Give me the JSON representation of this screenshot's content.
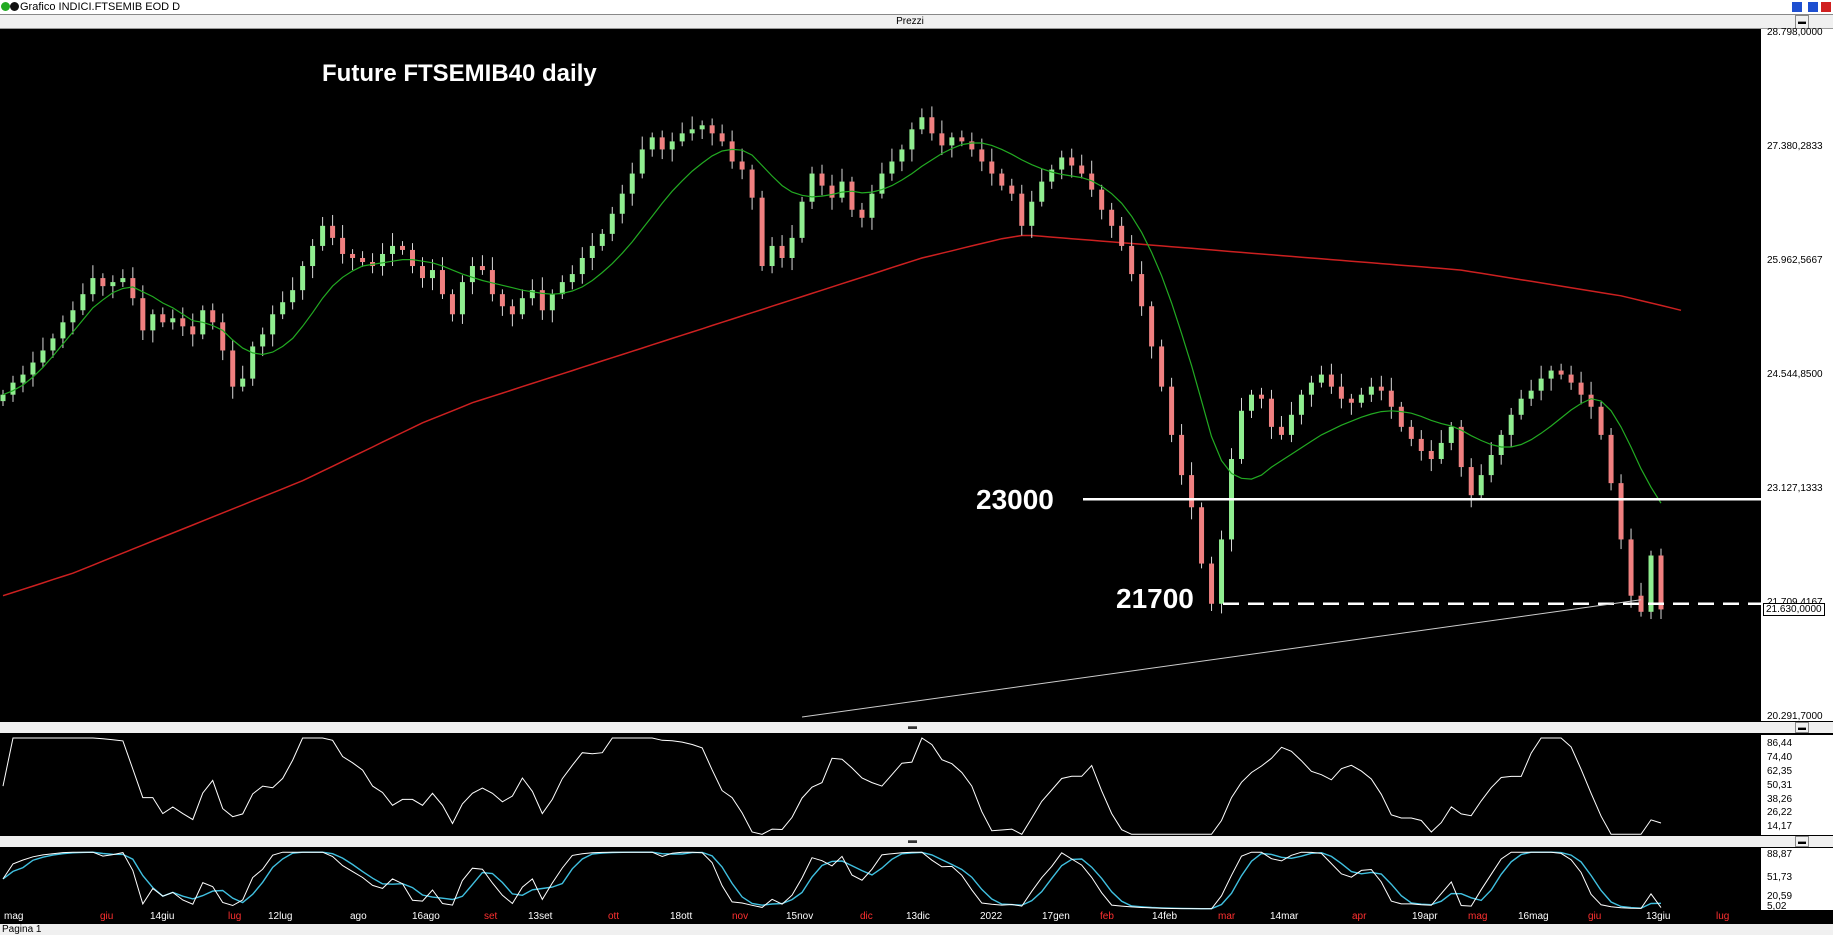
{
  "window": {
    "title": "Grafico INDICI.FTSEMIB EOD D"
  },
  "panels": {
    "price_title": "Prezzi"
  },
  "footer": {
    "tab": "Pagina 1"
  },
  "chart_data": [
    {
      "type": "candlestick",
      "title": "Future FTSEMIB40 daily",
      "y_ticks": [
        "28.798,0000",
        "27.380,2833",
        "25.962,5667",
        "24.544,8500",
        "23.127,1333",
        "21.709,4167",
        "20.291,7000"
      ],
      "y_tick_values": [
        28798,
        27380.28,
        25962.57,
        24544.85,
        23127.13,
        21709.42,
        20291.7
      ],
      "last_price_label": "21.630,0000",
      "last_price": 21630,
      "ylim": [
        20291.7,
        28798
      ],
      "x_ticks": [
        "mag",
        "giu",
        "14giu",
        "lug",
        "12lug",
        "ago",
        "16ago",
        "set",
        "13set",
        "ott",
        "18ott",
        "nov",
        "15nov",
        "dic",
        "13dic",
        "2022",
        "17gen",
        "feb",
        "14feb",
        "mar",
        "14mar",
        "apr",
        "19apr",
        "mag",
        "16mag",
        "giu",
        "13giu",
        "lug"
      ],
      "x_tick_red": [
        "mag",
        "lug",
        "set",
        "ott",
        "nov",
        "dic",
        "feb",
        "mar",
        "apr",
        "giu",
        "lug"
      ],
      "close_series": [
        24300,
        24450,
        24550,
        24700,
        24850,
        25000,
        25200,
        25350,
        25550,
        25750,
        25650,
        25700,
        25750,
        25500,
        25100,
        25300,
        25200,
        25250,
        25150,
        25050,
        25350,
        25200,
        24850,
        24400,
        24500,
        24900,
        25050,
        25300,
        25450,
        25600,
        25900,
        26150,
        26400,
        26250,
        26050,
        26000,
        25950,
        25900,
        26050,
        26150,
        26100,
        25900,
        25750,
        25850,
        25550,
        25300,
        25700,
        25900,
        25850,
        25550,
        25400,
        25300,
        25500,
        25600,
        25350,
        25550,
        25700,
        25800,
        26000,
        26150,
        26300,
        26550,
        26800,
        27050,
        27350,
        27500,
        27350,
        27450,
        27550,
        27600,
        27650,
        27550,
        27450,
        27200,
        27100,
        26750,
        25900,
        26150,
        26000,
        26250,
        26700,
        27050,
        26900,
        26750,
        26950,
        26600,
        26500,
        26800,
        27050,
        27200,
        27350,
        27600,
        27750,
        27550,
        27400,
        27500,
        27450,
        27350,
        27200,
        27050,
        26900,
        26800,
        26400,
        26700,
        26950,
        27100,
        27250,
        27150,
        27050,
        26850,
        26600,
        26400,
        26150,
        25800,
        25400,
        24900,
        24400,
        23800,
        23300,
        22900,
        22200,
        21700,
        22500,
        23500,
        24100,
        24300,
        24250,
        23900,
        23800,
        24050,
        24300,
        24450,
        24550,
        24400,
        24250,
        24200,
        24300,
        24400,
        24350,
        24150,
        23900,
        23750,
        23600,
        23500,
        23700,
        23900,
        23400,
        23050,
        23300,
        23550,
        23800,
        24050,
        24250,
        24350,
        24500,
        24600,
        24550,
        24450,
        24300,
        24150,
        23800,
        23200,
        22500,
        21800,
        21600,
        22300,
        21630
      ],
      "sma_fast": [
        24300,
        24350,
        24420,
        24520,
        24640,
        24780,
        24930,
        25080,
        25230,
        25380,
        25480,
        25570,
        25620,
        25640,
        25580,
        25520,
        25440,
        25380,
        25300,
        25220,
        25200,
        25160,
        25100,
        24980,
        24880,
        24820,
        24800,
        24830,
        24900,
        25000,
        25150,
        25320,
        25500,
        25650,
        25760,
        25840,
        25900,
        25920,
        25940,
        25960,
        25980,
        25980,
        25960,
        25940,
        25900,
        25850,
        25800,
        25760,
        25720,
        25690,
        25660,
        25630,
        25600,
        25580,
        25560,
        25550,
        25560,
        25590,
        25640,
        25720,
        25820,
        25930,
        26060,
        26200,
        26360,
        26520,
        26680,
        26830,
        26960,
        27080,
        27180,
        27270,
        27330,
        27350,
        27340,
        27280,
        27150,
        27020,
        26900,
        26820,
        26780,
        26760,
        26770,
        26790,
        26820,
        26830,
        26810,
        26820,
        26850,
        26900,
        26970,
        27050,
        27140,
        27220,
        27300,
        27360,
        27410,
        27430,
        27430,
        27400,
        27350,
        27290,
        27220,
        27160,
        27110,
        27070,
        27040,
        27020,
        27000,
        26960,
        26890,
        26800,
        26680,
        26520,
        26320,
        26070,
        25780,
        25440,
        25060,
        24660,
        24220,
        23780,
        23480,
        23320,
        23260,
        23250,
        23300,
        23400,
        23480,
        23560,
        23640,
        23720,
        23800,
        23860,
        23920,
        23970,
        24020,
        24060,
        24090,
        24100,
        24090,
        24070,
        24030,
        23980,
        23940,
        23910,
        23860,
        23790,
        23730,
        23680,
        23650,
        23650,
        23680,
        23740,
        23820,
        23910,
        24010,
        24110,
        24190,
        24250,
        24220,
        24100,
        23900,
        23650,
        23380,
        23150,
        22950
      ],
      "sma_slow": [
        21800,
        21840,
        21880,
        21920,
        21960,
        22000,
        22040,
        22080,
        22130,
        22180,
        22230,
        22280,
        22330,
        22380,
        22430,
        22480,
        22530,
        22580,
        22630,
        22680,
        22730,
        22780,
        22830,
        22880,
        22930,
        22980,
        23030,
        23080,
        23130,
        23180,
        23230,
        23290,
        23350,
        23410,
        23470,
        23530,
        23590,
        23650,
        23710,
        23770,
        23830,
        23890,
        23950,
        24000,
        24050,
        24100,
        24150,
        24200,
        24240,
        24280,
        24320,
        24360,
        24400,
        24440,
        24480,
        24520,
        24560,
        24600,
        24640,
        24680,
        24720,
        24760,
        24800,
        24840,
        24880,
        24920,
        24960,
        25000,
        25040,
        25080,
        25120,
        25160,
        25200,
        25240,
        25280,
        25320,
        25360,
        25400,
        25440,
        25480,
        25520,
        25560,
        25600,
        25640,
        25680,
        25720,
        25760,
        25800,
        25840,
        25880,
        25920,
        25960,
        26000,
        26030,
        26060,
        26090,
        26120,
        26150,
        26180,
        26210,
        26240,
        26260,
        26280,
        26280,
        26270,
        26260,
        26250,
        26240,
        26230,
        26220,
        26210,
        26200,
        26190,
        26180,
        26170,
        26160,
        26150,
        26140,
        26130,
        26120,
        26110,
        26100,
        26090,
        26080,
        26070,
        26060,
        26050,
        26040,
        26030,
        26020,
        26010,
        26000,
        25990,
        25980,
        25970,
        25960,
        25950,
        25940,
        25930,
        25920,
        25910,
        25900,
        25890,
        25880,
        25870,
        25860,
        25850,
        25830,
        25810,
        25790,
        25770,
        25750,
        25730,
        25710,
        25690,
        25670,
        25650,
        25630,
        25610,
        25590,
        25570,
        25550,
        25530,
        25500,
        25470,
        25440,
        25410,
        25380,
        25350
      ],
      "levels": [
        {
          "label": "23000",
          "value": 23000,
          "style": "solid"
        },
        {
          "label": "21700",
          "value": 21700,
          "style": "dashed"
        }
      ],
      "trendline": [
        {
          "i": 80,
          "value": 20291.7
        },
        {
          "i": 121,
          "value": 21000
        },
        {
          "i": 164,
          "value": 21750
        }
      ],
      "colors": {
        "up": "#90ee90",
        "down": "#f08080",
        "sma_fast": "#22aa22",
        "sma_slow": "#cc2020",
        "levels": "#ffffff"
      }
    },
    {
      "type": "line",
      "y_ticks": [
        "86,44",
        "74,40",
        "62,35",
        "50,31",
        "38,26",
        "26,22",
        "14,17"
      ],
      "y_tick_values": [
        86.44,
        74.4,
        62.35,
        50.31,
        38.26,
        26.22,
        14.17
      ],
      "ylim": [
        10,
        92
      ],
      "colors": {
        "line": "#ffffff"
      }
    },
    {
      "type": "line",
      "y_ticks": [
        "88,87",
        "51,73",
        "20,59",
        "5,02"
      ],
      "y_tick_values": [
        88.87,
        51.73,
        20.59,
        5.02
      ],
      "ylim": [
        0,
        95
      ],
      "colors": {
        "line1": "#ffffff",
        "line2": "#40c0e0"
      }
    }
  ]
}
